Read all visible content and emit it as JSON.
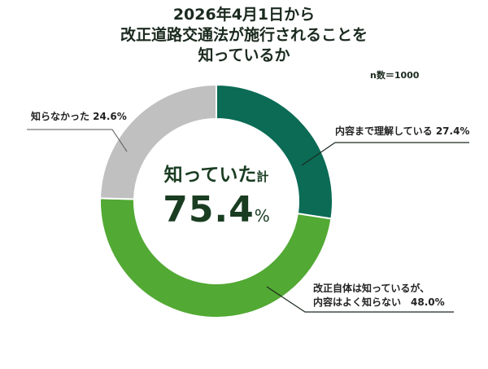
{
  "title": {
    "line1": "2026年4月1日から",
    "line2": "改正道路交通法が施行されることを",
    "line3": "知っているか"
  },
  "sample_size": "n数＝1000",
  "center": {
    "label_main": "知っていた",
    "label_suffix": "計",
    "value": "75.4",
    "unit": "%"
  },
  "labels": {
    "fully": "内容まで理解している 27.4%",
    "partial_line1": "改正自体は知っているが、",
    "partial_line2": "内容はよく知らない　48.0%",
    "unaware": "知らなかった 24.6%"
  },
  "colors": {
    "fully": "#0b6b55",
    "partial": "#52a934",
    "unaware": "#c0c0c0",
    "text": "#1b2a1e",
    "center_text": "#1a3d22"
  },
  "chart_data": {
    "type": "pie",
    "subtype": "donut",
    "title": "2026年4月1日から改正道路交通法が施行されることを知っているか",
    "annotation": "n数＝1000",
    "center_text": "知っていた計 75.4%",
    "categories": [
      "内容まで理解している",
      "改正自体は知っているが、内容はよく知らない",
      "知らなかった"
    ],
    "values": [
      27.4,
      48.0,
      24.6
    ],
    "unit": "%",
    "colors": [
      "#0b6b55",
      "#52a934",
      "#c0c0c0"
    ],
    "start_angle": "12 o'clock, clockwise",
    "legend": "none (direct labels with leader lines)"
  }
}
